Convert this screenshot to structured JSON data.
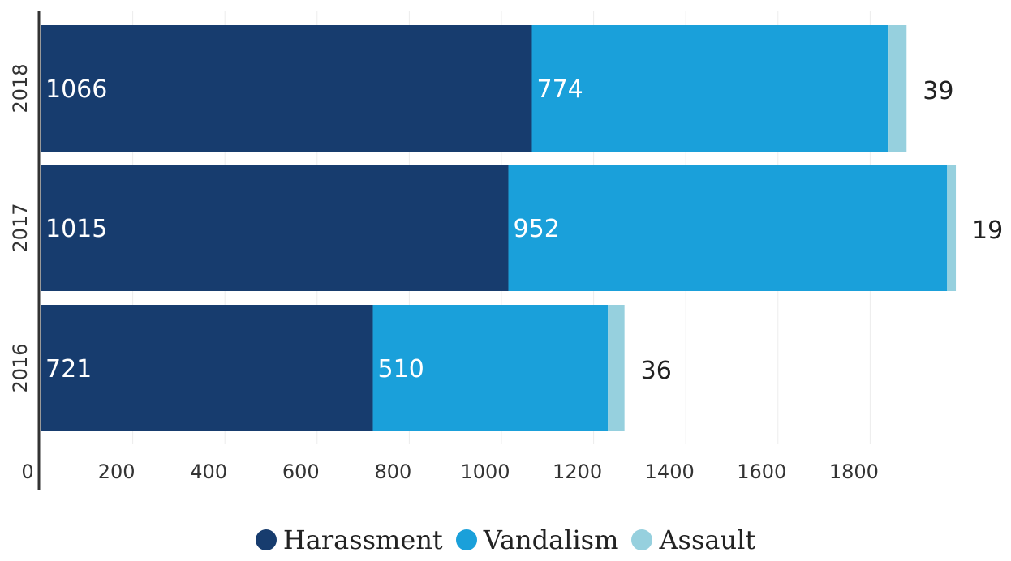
{
  "chart_data": {
    "type": "bar",
    "orientation": "horizontal",
    "stacked": true,
    "categories": [
      "2018",
      "2017",
      "2016"
    ],
    "series": [
      {
        "name": "Harassment",
        "color": "#173C6E",
        "values": [
          1066,
          1015,
          721
        ]
      },
      {
        "name": "Vandalism",
        "color": "#1AA0DA",
        "values": [
          774,
          952,
          510
        ]
      },
      {
        "name": "Assault",
        "color": "#96D0DE",
        "values": [
          39,
          19,
          36
        ]
      }
    ],
    "x_ticks": [
      "0",
      "200",
      "400",
      "600",
      "800",
      "1000",
      "1200",
      "1400",
      "1600",
      "1800"
    ],
    "xlim": [
      0,
      2000
    ],
    "grid": true,
    "legend_position": "bottom"
  }
}
